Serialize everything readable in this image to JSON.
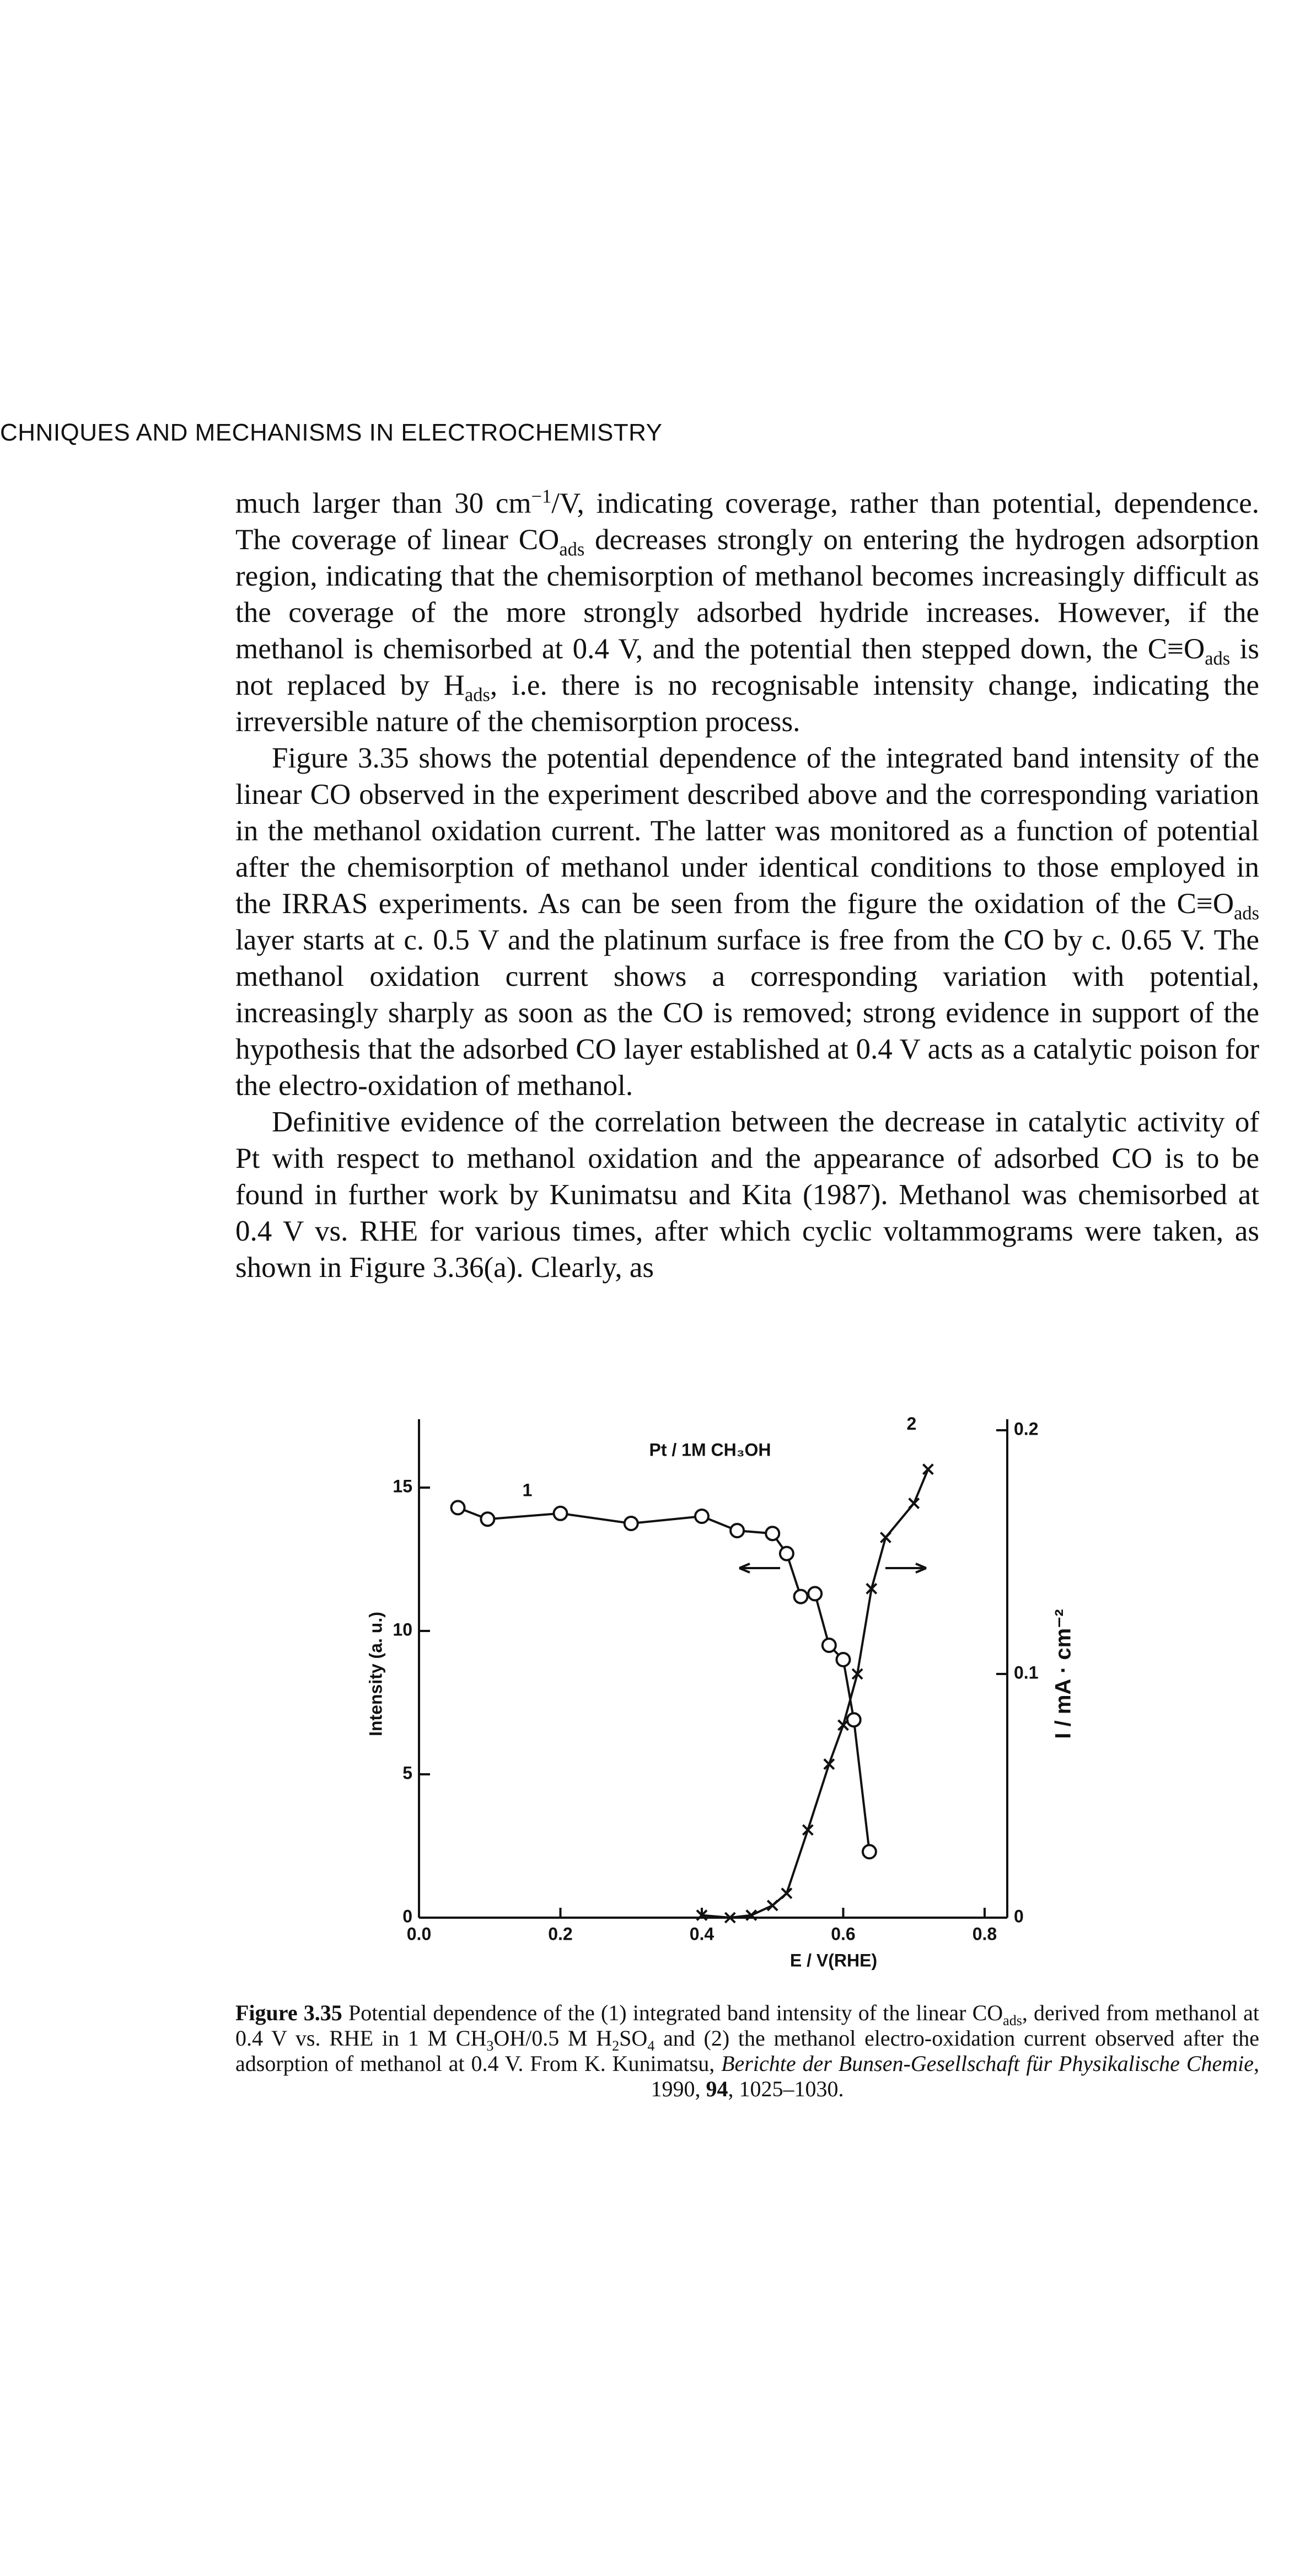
{
  "header": {
    "title": "CHNIQUES AND MECHANISMS IN ELECTROCHEMISTRY"
  },
  "paragraphs": [
    {
      "runs": [
        {
          "text": "much larger than 30 cm",
          "sup": "−1"
        },
        {
          "text": "/V, indicating coverage, rather than potential, dependence. The coverage of linear CO",
          "sub": "ads"
        },
        {
          "text": " decreases strongly on entering the hydrogen adsorption region, indicating that the chemisorption of methanol becomes increasingly difficult as the coverage of the more strongly adsorbed hydride increases. However, if the methanol is chemisorbed at 0.4 V, and the potential then stepped down, the C≡O",
          "sub": "ads"
        },
        {
          "text": " is not replaced by H",
          "sub": "ads"
        },
        {
          "text": ", i.e. there is no recognisable intensity change, indicating the irreversible nature of the chemisorption process."
        }
      ]
    },
    {
      "runs": [
        {
          "text": "Figure 3.35 shows the potential dependence of the integrated band intensity of the linear CO observed in the experiment described above and the corresponding variation in the methanol oxidation current. The latter was monitored as a function of potential after the chemisorption of methanol under identical conditions to those employed in the IRRAS experiments. As can be seen from the figure the oxidation of the C≡O",
          "sub": "ads"
        },
        {
          "text": " layer starts at c. 0.5 V and the platinum surface is free from the CO by c. 0.65 V. The methanol oxidation current shows a corresponding variation with potential, increasingly sharply as soon as the CO is removed; strong evidence in support of the hypothesis that the adsorbed CO layer established at 0.4 V acts as a catalytic poison for the electro-oxidation of methanol."
        }
      ]
    },
    {
      "runs": [
        {
          "text": "Definitive evidence of the correlation between the decrease in catalytic activity of Pt with respect to methanol oxidation and the appearance of adsorbed CO is to be found in further work by Kunimatsu and Kita (1987). Methanol was chemisorbed at 0.4 V vs. RHE for various times, after which cyclic voltammograms were taken, as shown in Figure 3.36(a). Clearly, as"
        }
      ]
    }
  ],
  "chart_data": {
    "type": "line",
    "title": "Pt / 1M CH₃OH",
    "x_label": "E / V(RHE)",
    "y_label": "Intensity (a. u.)",
    "y2_label": "I / mA · cm⁻²",
    "xlim": [
      0,
      0.832
    ],
    "ylim": [
      0,
      17
    ],
    "y2lim": [
      0,
      0.2
    ],
    "xticks": [
      {
        "value": 0,
        "label": "0.0"
      },
      0.2,
      0.4,
      0.6,
      0.8
    ],
    "yticks": [
      0,
      5,
      10,
      15
    ],
    "y2ticks": [
      0,
      0.1,
      0.2
    ],
    "series": [
      {
        "name": "1",
        "color": "#111111",
        "marker": "circle",
        "x": [
          0.055,
          0.097,
          0.2,
          0.3,
          0.4,
          0.45,
          0.5,
          0.52,
          0.54,
          0.56,
          0.58,
          0.6,
          0.615,
          0.637
        ],
        "values": [
          14.3,
          13.9,
          14.1,
          13.75,
          14,
          13.5,
          13.4,
          12.7,
          11.2,
          11.3,
          9.5,
          9,
          6.9,
          2.3
        ]
      },
      {
        "name": "2",
        "color": "#111111",
        "marker": "cross",
        "axis": "y2",
        "x": [
          0.4,
          0.44,
          0.47,
          0.5,
          0.52,
          0.55,
          0.58,
          0.6,
          0.62,
          0.64,
          0.66,
          0.7,
          0.72
        ],
        "values": [
          0.001,
          0,
          0.001,
          0.005,
          0.01,
          0.036,
          0.063,
          0.079,
          0.1,
          0.135,
          0.156,
          0.17,
          0.184
        ]
      }
    ]
  },
  "caption": {
    "label": "Figure 3.35",
    "runs": [
      {
        "text": " Potential dependence of the (1) integrated band intensity of the linear CO",
        "sub": "ads"
      },
      {
        "text": ", derived from methanol at 0.4 V vs. RHE in 1 M CH",
        "sub": "3"
      },
      {
        "text": "OH/0.5 M H",
        "sub": "2"
      },
      {
        "text": "SO",
        "sub": "4"
      },
      {
        "text": " and (2) the methanol electro-oxidation current observed after the adsorption of methanol at 0.4 V. From K. Kunimatsu, "
      }
    ],
    "journal": "Berichte der Bunsen-Gesellschaft für Physikalische Chemie",
    "year": ", 1990, ",
    "volume": "94",
    "pages": ", 1025–1030."
  }
}
